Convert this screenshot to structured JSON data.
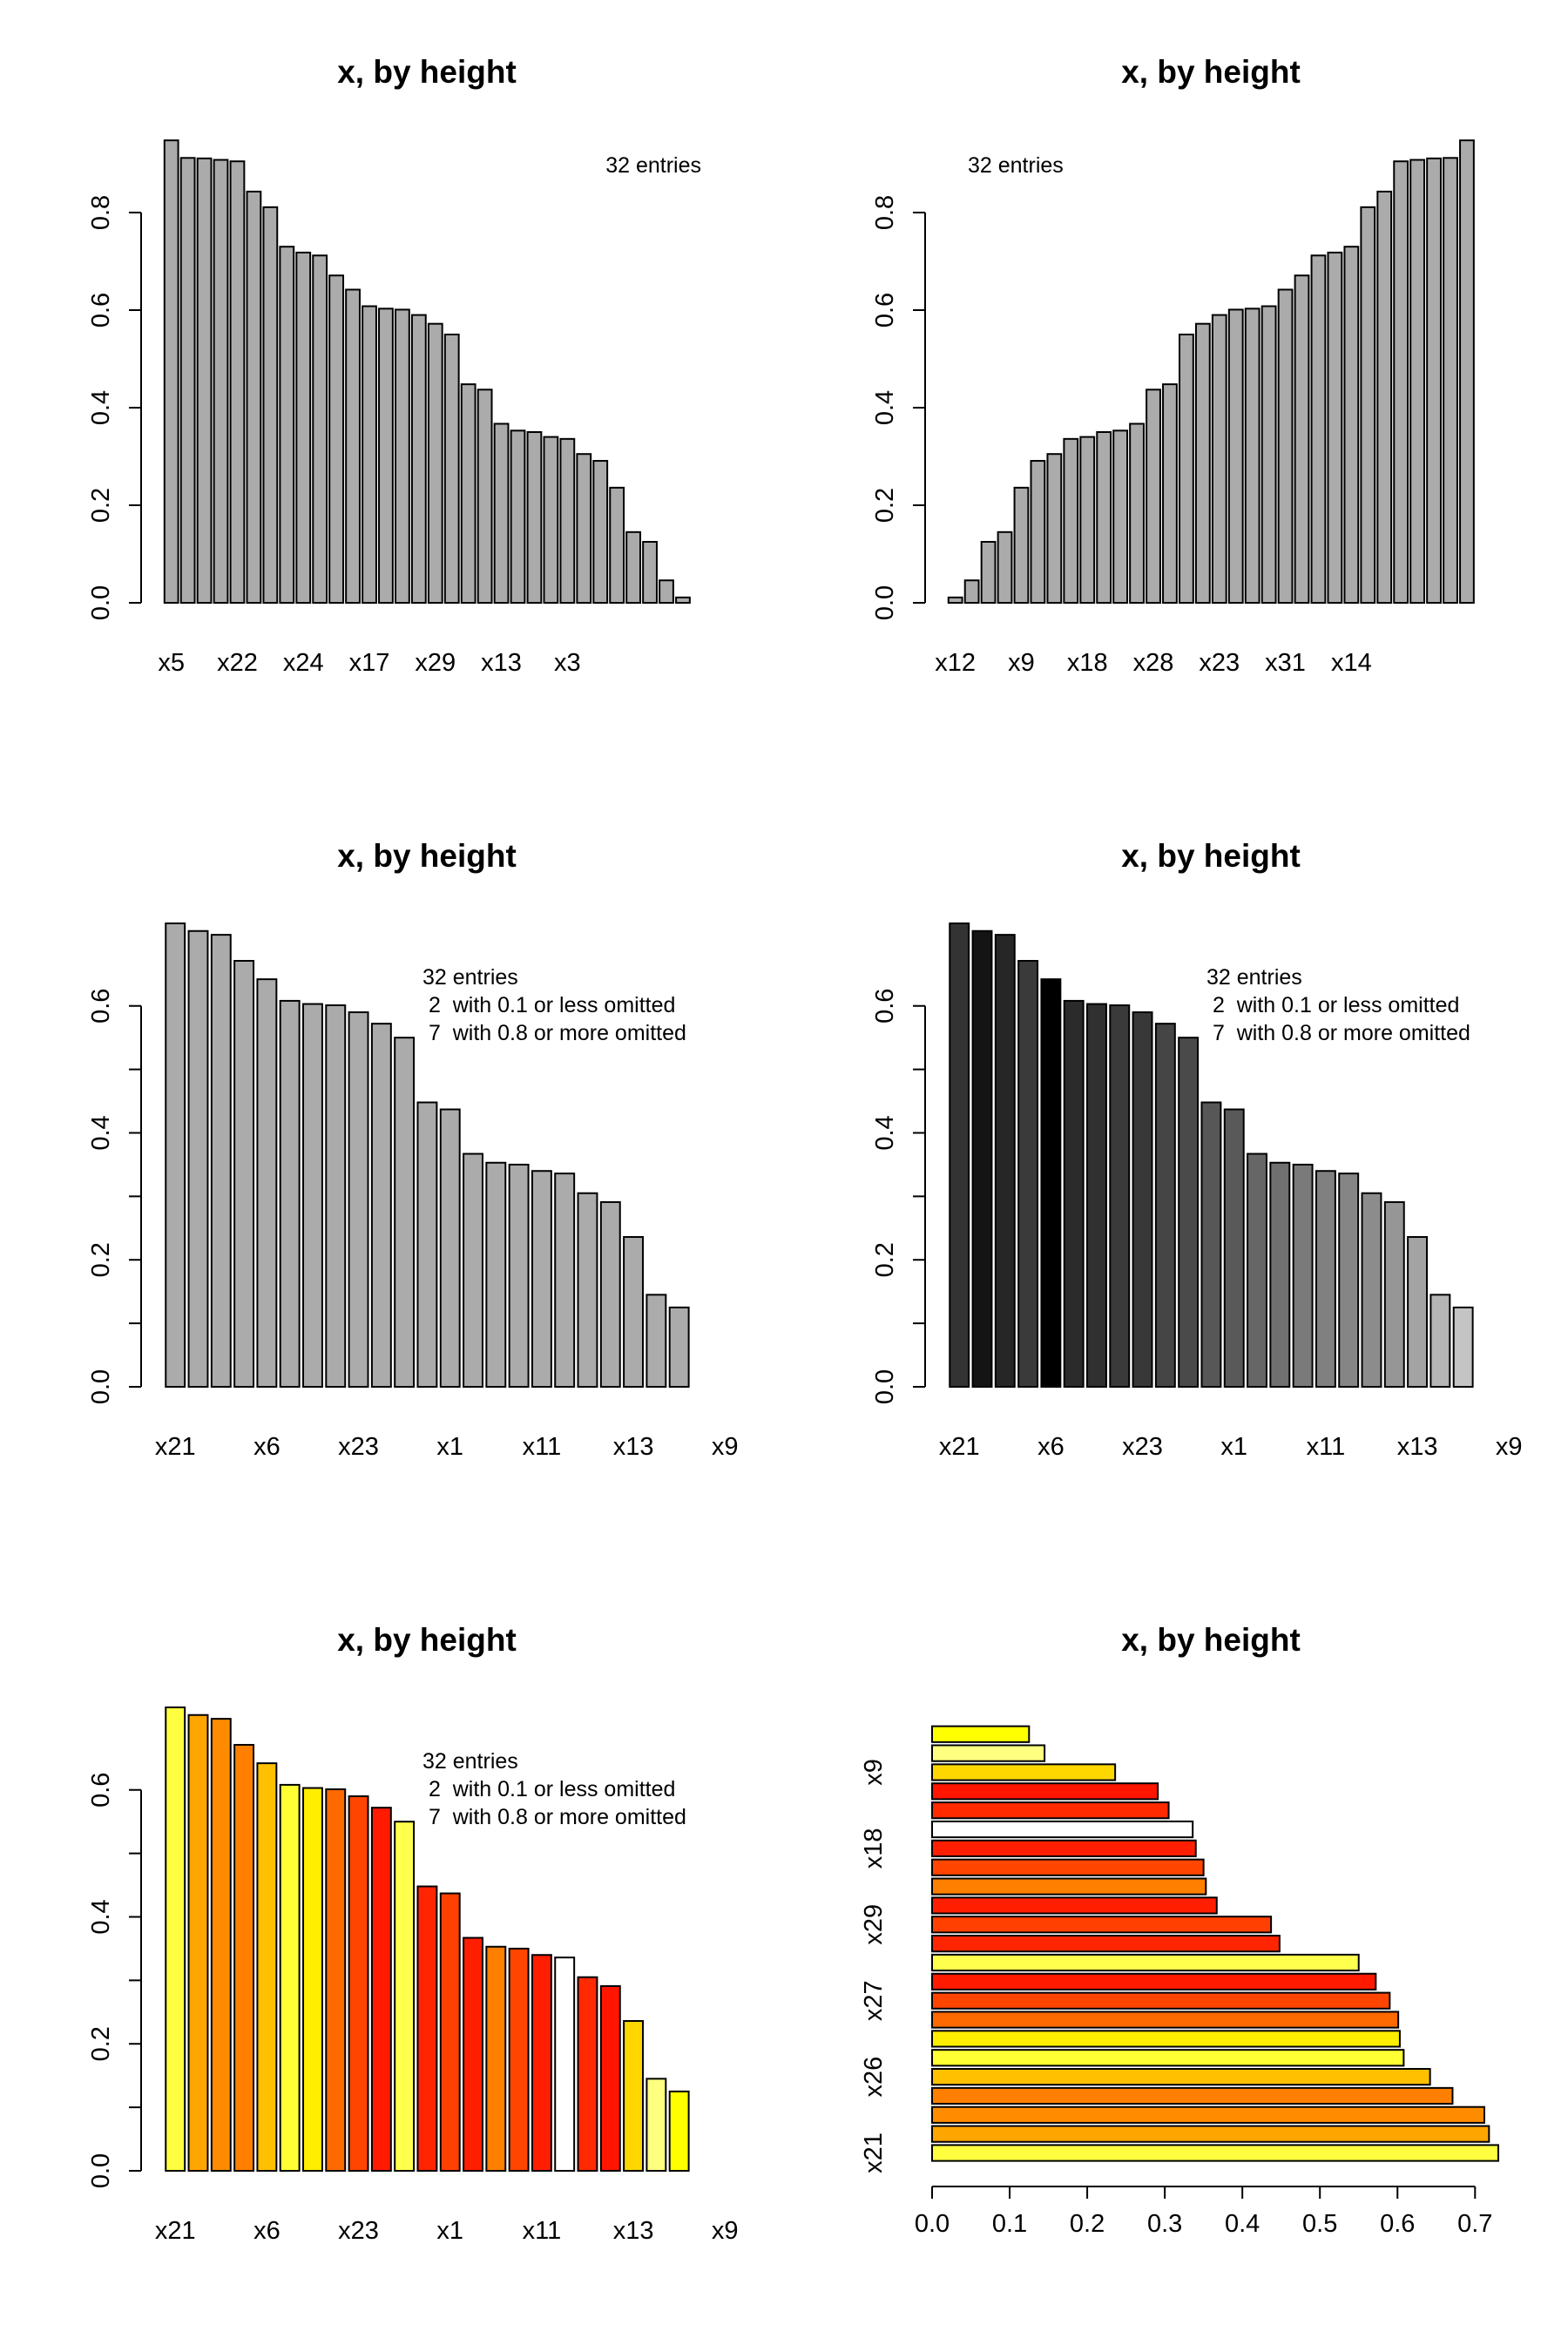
{
  "chart_data": [
    {
      "panel": 1,
      "type": "bar",
      "orientation": "vertical",
      "title": "x, by height",
      "note": [
        "32 entries"
      ],
      "note_align": "right",
      "ylim": [
        0,
        0.95
      ],
      "yticks": [
        "0.0",
        "0.2",
        "0.4",
        "0.6",
        "0.8"
      ],
      "labelled_categories": [
        "x5",
        "x22",
        "x24",
        "x17",
        "x29",
        "x13",
        "x3"
      ],
      "values": [
        0.948,
        0.912,
        0.911,
        0.908,
        0.905,
        0.843,
        0.811,
        0.73,
        0.718,
        0.712,
        0.671,
        0.642,
        0.608,
        0.603,
        0.601,
        0.59,
        0.572,
        0.55,
        0.448,
        0.437,
        0.367,
        0.353,
        0.35,
        0.34,
        0.336,
        0.305,
        0.291,
        0.236,
        0.145,
        0.125,
        0.046,
        0.011
      ],
      "bar_color": "#ababab"
    },
    {
      "panel": 2,
      "type": "bar",
      "orientation": "vertical",
      "title": "x, by height",
      "note": [
        "32 entries"
      ],
      "note_align": "left",
      "ylim": [
        0,
        0.95
      ],
      "yticks": [
        "0.0",
        "0.2",
        "0.4",
        "0.6",
        "0.8"
      ],
      "labelled_categories": [
        "x12",
        "x9",
        "x18",
        "x28",
        "x23",
        "x31",
        "x14"
      ],
      "values": [
        0.011,
        0.046,
        0.125,
        0.145,
        0.236,
        0.291,
        0.305,
        0.336,
        0.34,
        0.35,
        0.353,
        0.367,
        0.437,
        0.448,
        0.55,
        0.572,
        0.59,
        0.601,
        0.603,
        0.608,
        0.642,
        0.671,
        0.712,
        0.718,
        0.73,
        0.811,
        0.843,
        0.905,
        0.908,
        0.911,
        0.912,
        0.948
      ],
      "bar_color": "#ababab"
    },
    {
      "panel": 3,
      "type": "bar",
      "orientation": "vertical",
      "title": "x, by height",
      "note": [
        "32 entries",
        " 2  with 0.1 or less omitted",
        " 7  with 0.8 or more omitted"
      ],
      "note_align": "left",
      "ylim": [
        0,
        0.73
      ],
      "yticks": [
        "0.0",
        "0.2",
        "0.4",
        "0.6"
      ],
      "minor_ticks": true,
      "labelled_categories": [
        "x21",
        "x6",
        "x23",
        "x1",
        "x11",
        "x13",
        "x9"
      ],
      "values": [
        0.73,
        0.718,
        0.712,
        0.671,
        0.642,
        0.608,
        0.603,
        0.601,
        0.59,
        0.572,
        0.55,
        0.448,
        0.437,
        0.367,
        0.353,
        0.35,
        0.34,
        0.336,
        0.305,
        0.291,
        0.236,
        0.145,
        0.125
      ],
      "bar_color": "#ababab"
    },
    {
      "panel": 4,
      "type": "bar",
      "orientation": "vertical",
      "title": "x, by height",
      "note": [
        "32 entries",
        " 2  with 0.1 or less omitted",
        " 7  with 0.8 or more omitted"
      ],
      "note_align": "left",
      "ylim": [
        0,
        0.73
      ],
      "yticks": [
        "0.0",
        "0.2",
        "0.4",
        "0.6"
      ],
      "minor_ticks": true,
      "labelled_categories": [
        "x21",
        "x6",
        "x23",
        "x1",
        "x11",
        "x13",
        "x9"
      ],
      "values": [
        0.73,
        0.718,
        0.712,
        0.671,
        0.642,
        0.608,
        0.603,
        0.601,
        0.59,
        0.572,
        0.55,
        0.448,
        0.437,
        0.367,
        0.353,
        0.35,
        0.34,
        0.336,
        0.305,
        0.291,
        0.236,
        0.145,
        0.125
      ],
      "bar_colors": [
        "#333333",
        "#141414",
        "#262626",
        "#3a3a3a",
        "#000000",
        "#2b2b2b",
        "#303030",
        "#3a3a3a",
        "#383838",
        "#454545",
        "#4a4a4a",
        "#575757",
        "#595959",
        "#666666",
        "#707070",
        "#7a7a7a",
        "#808080",
        "#858585",
        "#8c8c8c",
        "#969696",
        "#a3a3a3",
        "#b5b5b5",
        "#c4c4c4"
      ]
    },
    {
      "panel": 5,
      "type": "bar",
      "orientation": "vertical",
      "title": "x, by height",
      "note": [
        "32 entries",
        " 2  with 0.1 or less omitted",
        " 7  with 0.8 or more omitted"
      ],
      "note_align": "left",
      "ylim": [
        0,
        0.73
      ],
      "yticks": [
        "0.0",
        "0.2",
        "0.4",
        "0.6"
      ],
      "minor_ticks": true,
      "labelled_categories": [
        "x21",
        "x6",
        "x23",
        "x1",
        "x11",
        "x13",
        "x9"
      ],
      "values": [
        0.73,
        0.718,
        0.712,
        0.671,
        0.642,
        0.608,
        0.603,
        0.601,
        0.59,
        0.572,
        0.55,
        0.448,
        0.437,
        0.367,
        0.353,
        0.35,
        0.34,
        0.336,
        0.305,
        0.291,
        0.236,
        0.145,
        0.125
      ],
      "bar_colors": [
        "#ffff40",
        "#ffa500",
        "#ff8c00",
        "#ff7f00",
        "#ffc000",
        "#ffff33",
        "#ffee00",
        "#ff6a00",
        "#ff4500",
        "#ff1a00",
        "#ffff4d",
        "#ff2500",
        "#ff4000",
        "#ff1e00",
        "#ff7f00",
        "#ff4500",
        "#ff1f00",
        "#ffffff",
        "#ff2a00",
        "#ff1500",
        "#ffd700",
        "#ffff80",
        "#ffff00"
      ]
    },
    {
      "panel": 6,
      "type": "bar",
      "orientation": "horizontal",
      "title": "x, by height",
      "xlim": [
        0,
        0.73
      ],
      "xticks": [
        "0.0",
        "0.1",
        "0.2",
        "0.3",
        "0.4",
        "0.5",
        "0.6",
        "0.7"
      ],
      "labelled_categories": [
        "x21",
        "x26",
        "x27",
        "x29",
        "x18",
        "x9"
      ],
      "values": [
        0.73,
        0.718,
        0.712,
        0.671,
        0.642,
        0.608,
        0.603,
        0.601,
        0.59,
        0.572,
        0.55,
        0.448,
        0.437,
        0.367,
        0.353,
        0.35,
        0.34,
        0.336,
        0.305,
        0.291,
        0.236,
        0.145,
        0.125
      ],
      "bar_colors": [
        "#ffff40",
        "#ffa500",
        "#ff8c00",
        "#ff7f00",
        "#ffc000",
        "#ffff33",
        "#ffee00",
        "#ff6a00",
        "#ff4500",
        "#ff1a00",
        "#ffff4d",
        "#ff2500",
        "#ff4000",
        "#ff1e00",
        "#ff7f00",
        "#ff4500",
        "#ff1f00",
        "#ffffff",
        "#ff2a00",
        "#ff1500",
        "#ffd700",
        "#ffff80",
        "#ffff00"
      ]
    }
  ]
}
